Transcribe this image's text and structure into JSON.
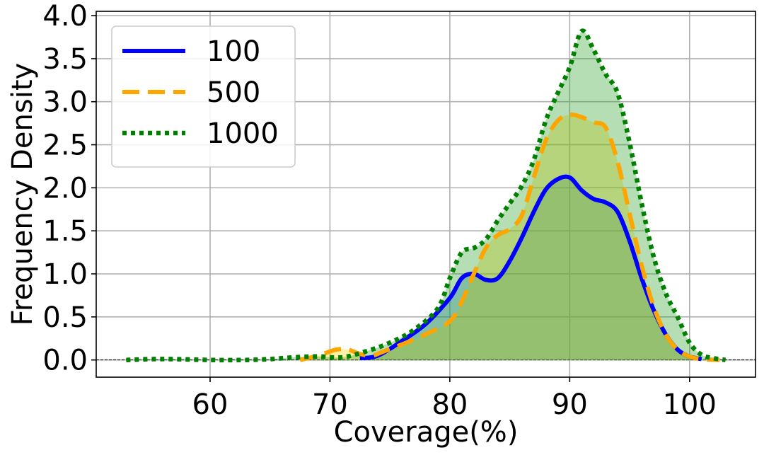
{
  "chart_data": {
    "type": "area",
    "title": "",
    "xlabel": "Coverage(%)",
    "ylabel": "Frequency Density",
    "xlim": [
      50.5,
      105.5
    ],
    "ylim": [
      -0.2,
      4.05
    ],
    "xticks": [
      60,
      70,
      80,
      90,
      100
    ],
    "xtick_labels": [
      "60",
      "70",
      "80",
      "90",
      "100"
    ],
    "yticks": [
      0,
      0.5,
      1,
      1.5,
      2,
      2.5,
      3,
      3.5,
      4
    ],
    "ytick_labels": [
      "0.0",
      "0.5",
      "1.0",
      "1.5",
      "2.0",
      "2.5",
      "3.0",
      "3.5",
      "4.0"
    ],
    "grid": true,
    "legend_position": "top-left",
    "baseline": 0,
    "series": [
      {
        "name": "100",
        "color": "#0000ff",
        "fill": "#1f77b4",
        "line_style": "solid",
        "x": [
          72.5,
          74,
          76,
          78,
          80,
          81,
          82,
          83,
          84,
          85,
          86,
          87,
          88,
          89,
          90,
          91,
          92,
          93,
          94,
          95,
          96,
          97,
          98,
          99,
          100,
          101
        ],
        "y": [
          0.02,
          0.05,
          0.22,
          0.42,
          0.72,
          0.95,
          1.0,
          0.93,
          0.95,
          1.15,
          1.42,
          1.72,
          1.98,
          2.1,
          2.12,
          1.97,
          1.87,
          1.83,
          1.72,
          1.38,
          0.95,
          0.58,
          0.3,
          0.12,
          0.04,
          0.01
        ]
      },
      {
        "name": "500",
        "color": "#ffa500",
        "fill": "#ffd400",
        "line_style": "dashed",
        "x": [
          67.5,
          69,
          70.5,
          71.5,
          72.5,
          73.5,
          74.5,
          76,
          78,
          80,
          81,
          82,
          83,
          84,
          85,
          86,
          87,
          88,
          89,
          90,
          91,
          92,
          93,
          94,
          95,
          96,
          97,
          98,
          99,
          100,
          101,
          102.5
        ],
        "y": [
          0.0,
          0.05,
          0.12,
          0.12,
          0.07,
          0.05,
          0.1,
          0.18,
          0.3,
          0.45,
          0.68,
          1.0,
          1.3,
          1.45,
          1.52,
          1.68,
          2.12,
          2.55,
          2.78,
          2.85,
          2.82,
          2.76,
          2.7,
          2.3,
          1.7,
          1.1,
          0.62,
          0.3,
          0.12,
          0.04,
          0.01,
          0.0
        ]
      },
      {
        "name": "1000",
        "color": "#008000",
        "fill": "#2ca02c",
        "line_style": "dotted",
        "x": [
          53,
          55,
          57,
          60,
          63,
          65,
          67,
          69,
          71,
          73,
          75,
          77,
          79,
          80,
          81,
          82,
          83,
          84,
          85,
          86,
          87,
          88,
          89,
          90,
          91,
          92,
          93,
          94,
          95,
          96,
          97,
          98,
          99,
          100,
          101,
          102,
          103
        ],
        "y": [
          0.0,
          0.01,
          0.01,
          0.0,
          0.0,
          0.01,
          0.03,
          0.04,
          0.03,
          0.1,
          0.2,
          0.35,
          0.6,
          0.95,
          1.25,
          1.3,
          1.4,
          1.62,
          1.82,
          2.02,
          2.32,
          2.78,
          3.1,
          3.4,
          3.82,
          3.6,
          3.32,
          3.1,
          2.52,
          1.82,
          1.2,
          0.78,
          0.5,
          0.2,
          0.06,
          0.02,
          0.0
        ]
      }
    ]
  }
}
